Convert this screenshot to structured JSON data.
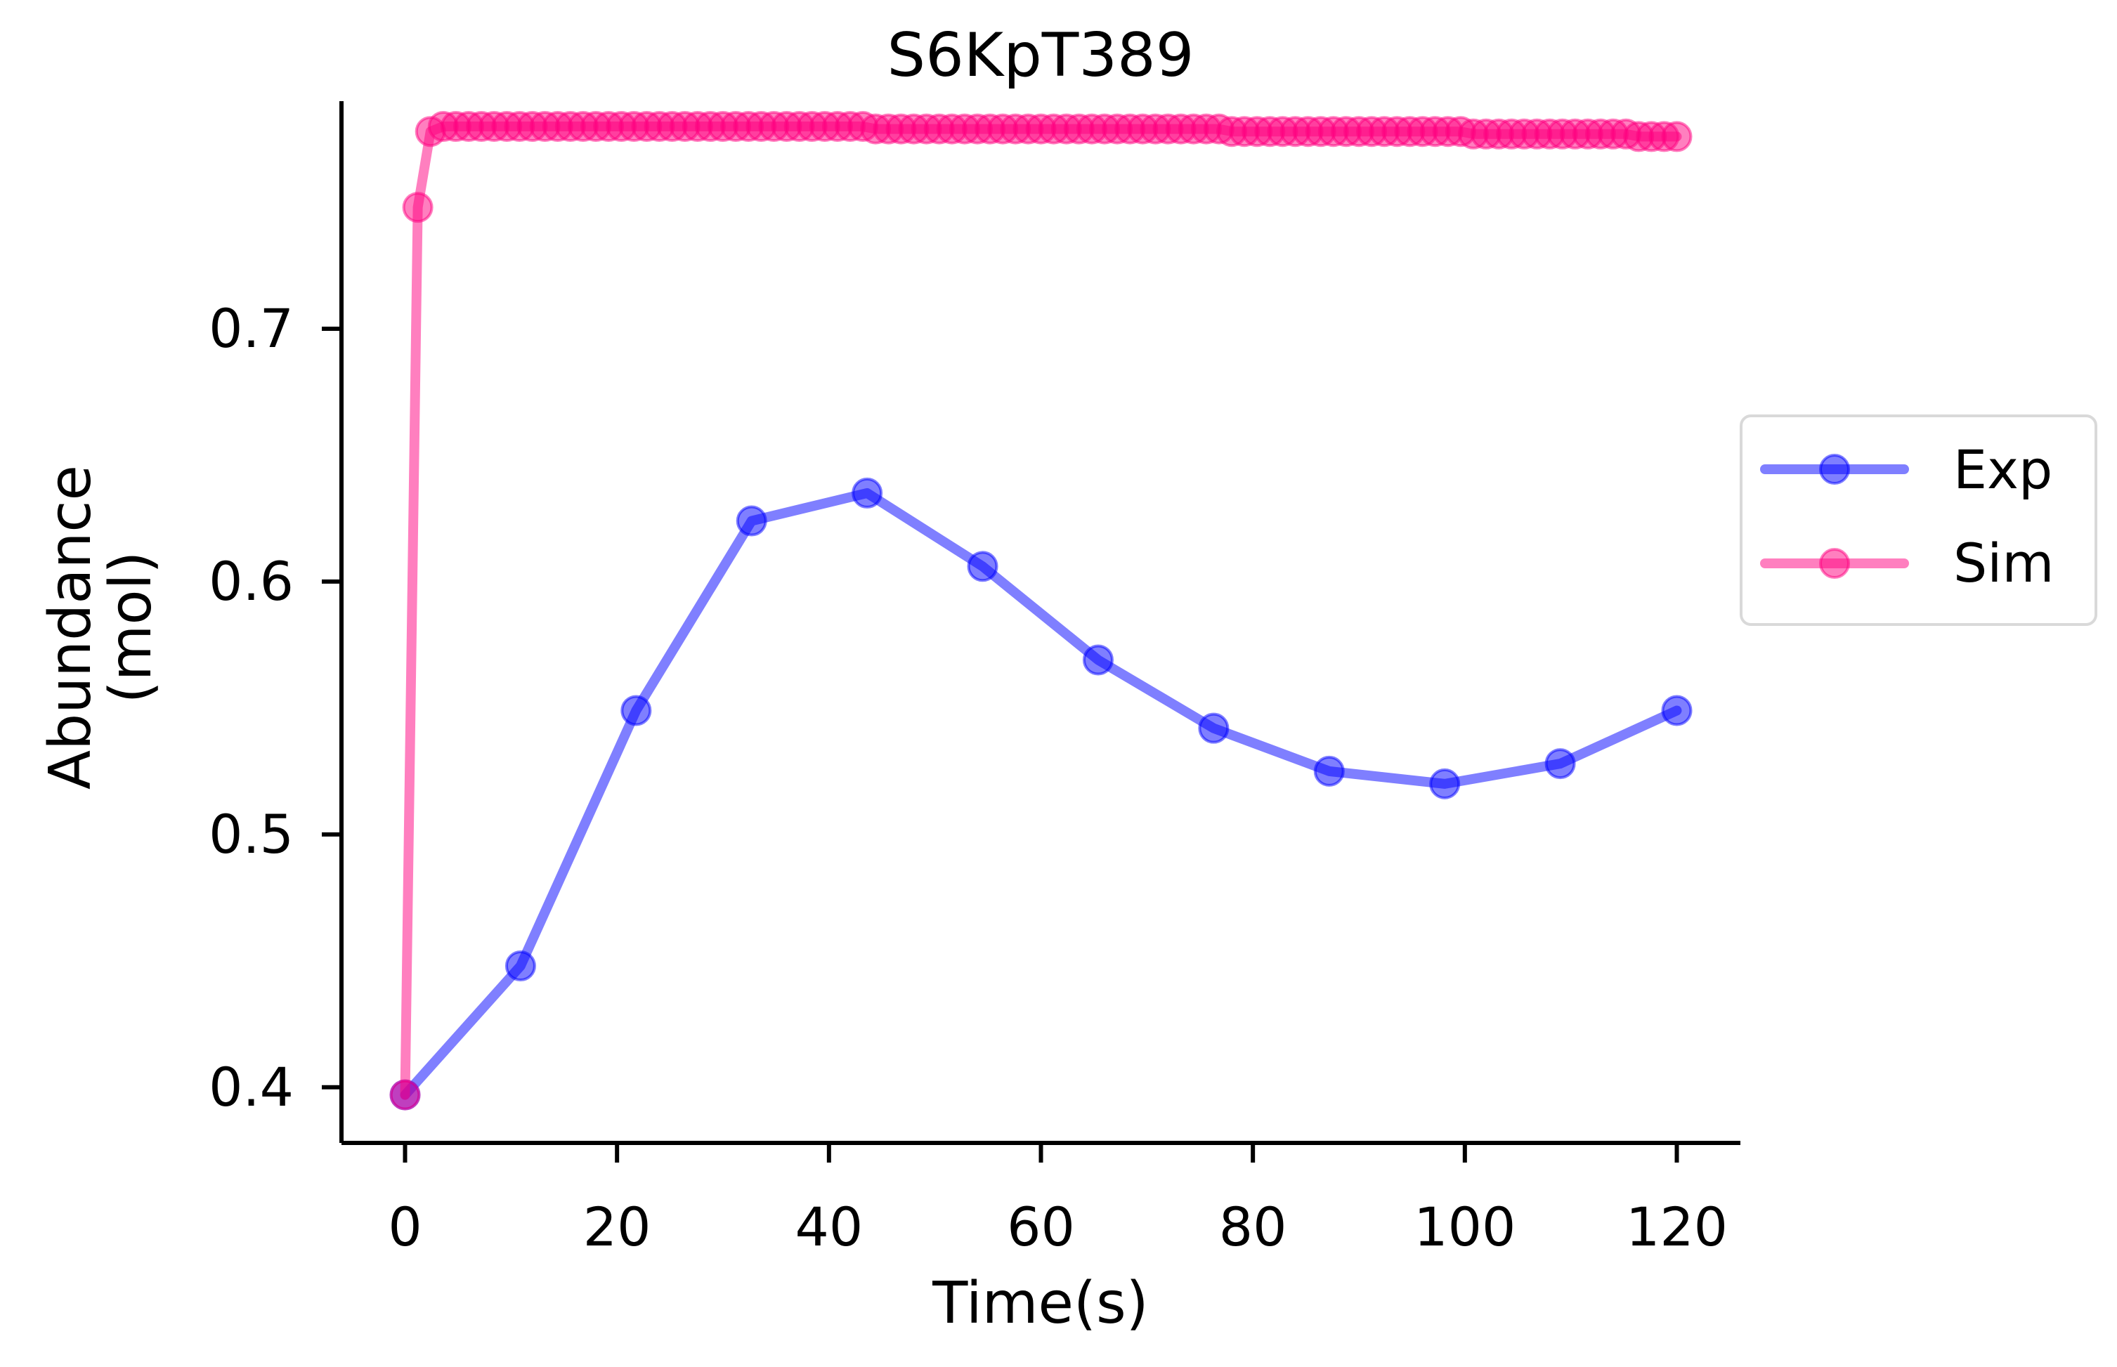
{
  "chart_data": {
    "type": "line",
    "title": "S6KpT389",
    "xlabel": "Time(s)",
    "ylabel": [
      "Abundance",
      "(mol)"
    ],
    "xlim": [
      -6,
      126
    ],
    "ylim": [
      0.378,
      0.79
    ],
    "xticks": [
      0,
      20,
      40,
      60,
      80,
      100,
      120
    ],
    "yticks": [
      0.4,
      0.5,
      0.6,
      0.7
    ],
    "xtick_labels": [
      "0",
      "20",
      "40",
      "60",
      "80",
      "100",
      "120"
    ],
    "ytick_labels": [
      "0.4",
      "0.5",
      "0.6",
      "0.7"
    ],
    "grid": false,
    "legend_position": "right-outside",
    "series": [
      {
        "name": "Exp",
        "color": "#0000ff",
        "alpha": 0.5,
        "x": [
          0,
          10.9,
          21.8,
          32.7,
          43.6,
          54.5,
          65.4,
          76.3,
          87.2,
          98.1,
          109,
          120
        ],
        "y": [
          0.397,
          0.448,
          0.549,
          0.624,
          0.635,
          0.606,
          0.569,
          0.542,
          0.525,
          0.52,
          0.528,
          0.549
        ]
      },
      {
        "name": "Sim",
        "color": "#ff007f",
        "alpha": 0.5,
        "x": [
          0,
          1.2,
          2.4,
          3.6,
          4.8,
          6,
          7.2,
          8.4,
          9.6,
          10.8,
          12,
          13.2,
          14.4,
          15.6,
          16.8,
          18,
          19.2,
          20.4,
          21.6,
          22.8,
          24,
          25.2,
          26.4,
          27.6,
          28.8,
          30,
          31.2,
          32.4,
          33.6,
          34.8,
          36,
          37.2,
          38.4,
          39.6,
          40.8,
          42,
          43.2,
          44.4,
          45.6,
          46.8,
          48,
          49.2,
          50.4,
          51.6,
          52.8,
          54,
          55.2,
          56.4,
          57.6,
          58.8,
          60,
          61.2,
          62.4,
          63.6,
          64.8,
          66,
          67.2,
          68.4,
          69.6,
          70.8,
          72,
          73.2,
          74.4,
          75.6,
          76.8,
          78,
          79.2,
          80.4,
          81.6,
          82.8,
          84,
          85.2,
          86.4,
          87.6,
          88.8,
          90,
          91.2,
          92.4,
          93.6,
          94.8,
          96,
          97.2,
          98.4,
          99.6,
          100.8,
          102,
          103.2,
          104.4,
          105.6,
          106.8,
          108,
          109.2,
          110.4,
          111.6,
          112.8,
          114,
          115.2,
          116.4,
          117.6,
          118.8,
          120
        ],
        "y": [
          0.397,
          0.748,
          0.778,
          0.78,
          0.78,
          0.78,
          0.78,
          0.78,
          0.78,
          0.78,
          0.78,
          0.78,
          0.78,
          0.78,
          0.78,
          0.78,
          0.78,
          0.78,
          0.78,
          0.78,
          0.78,
          0.78,
          0.78,
          0.78,
          0.78,
          0.78,
          0.78,
          0.78,
          0.78,
          0.78,
          0.78,
          0.78,
          0.78,
          0.78,
          0.78,
          0.78,
          0.78,
          0.779,
          0.779,
          0.779,
          0.779,
          0.779,
          0.779,
          0.779,
          0.779,
          0.779,
          0.779,
          0.779,
          0.779,
          0.779,
          0.779,
          0.779,
          0.779,
          0.779,
          0.779,
          0.779,
          0.779,
          0.779,
          0.779,
          0.779,
          0.779,
          0.779,
          0.779,
          0.779,
          0.779,
          0.778,
          0.778,
          0.778,
          0.778,
          0.778,
          0.778,
          0.778,
          0.778,
          0.778,
          0.778,
          0.778,
          0.778,
          0.778,
          0.778,
          0.778,
          0.778,
          0.778,
          0.778,
          0.778,
          0.777,
          0.777,
          0.777,
          0.777,
          0.777,
          0.777,
          0.777,
          0.777,
          0.777,
          0.777,
          0.777,
          0.777,
          0.777,
          0.776,
          0.776,
          0.776,
          0.776
        ]
      }
    ]
  }
}
